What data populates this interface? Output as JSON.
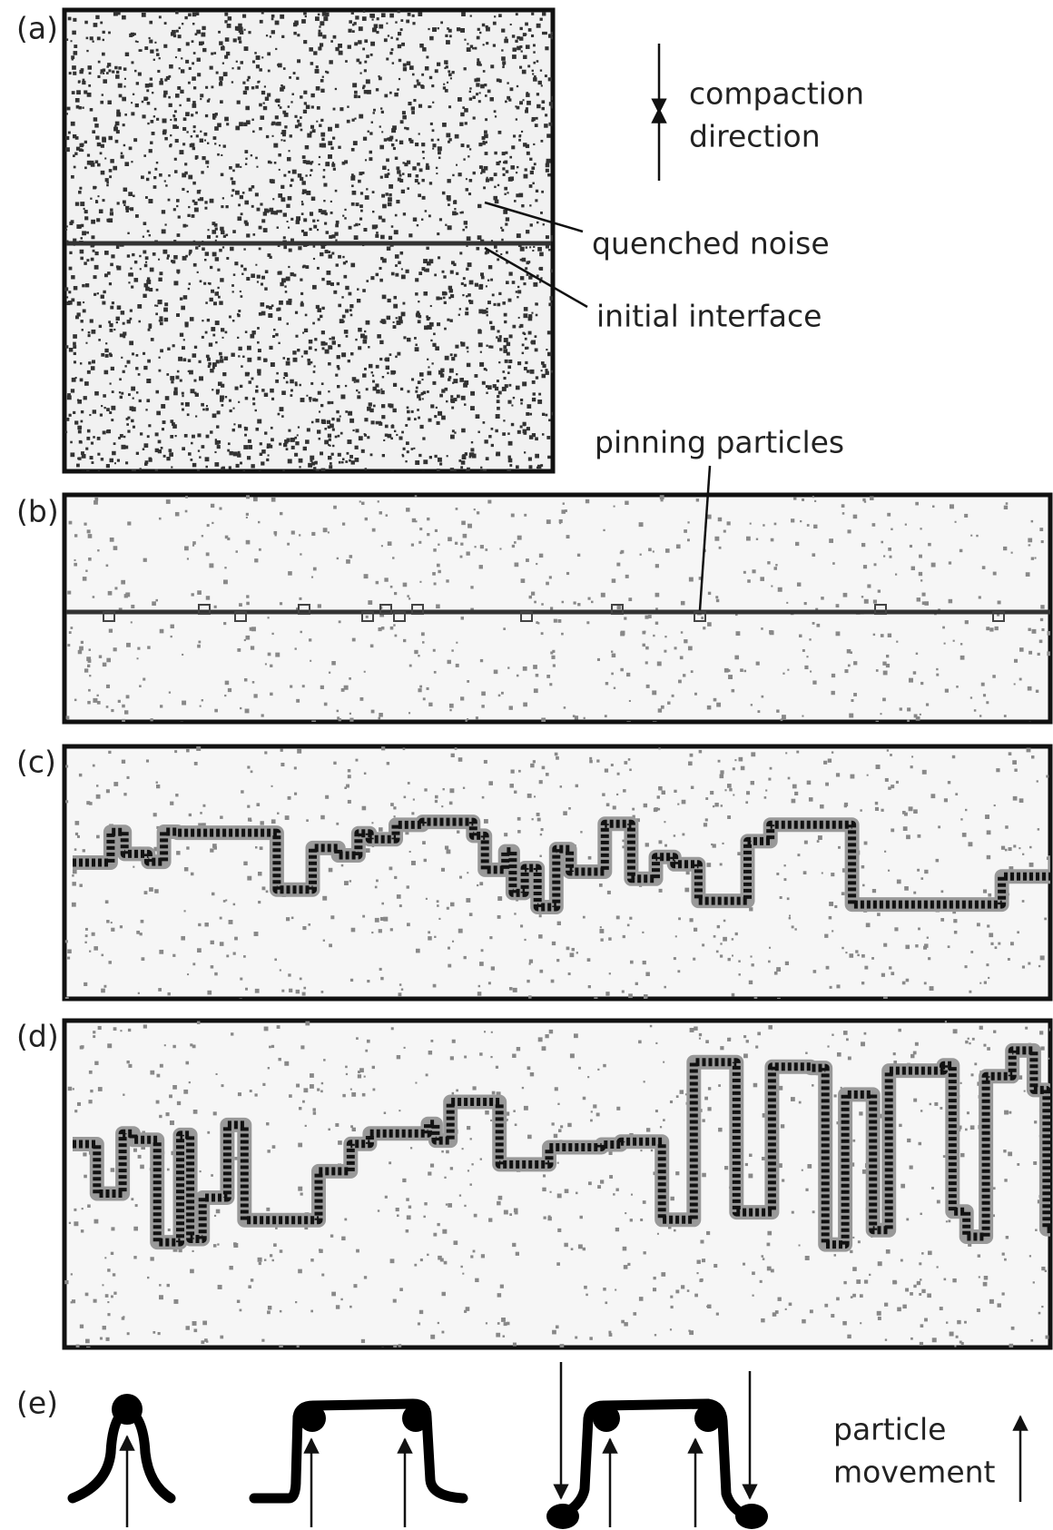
{
  "panel_labels": [
    "(a)",
    "(b)",
    "(c)",
    "(d)",
    "(e)"
  ],
  "annotations": {
    "compaction_direction": [
      "compaction",
      "direction"
    ],
    "quenched_noise": "quenched noise",
    "initial_interface": "initial interface",
    "pinning_particles": "pinning particles",
    "particle_movement": [
      "particle",
      "movement"
    ]
  }
}
